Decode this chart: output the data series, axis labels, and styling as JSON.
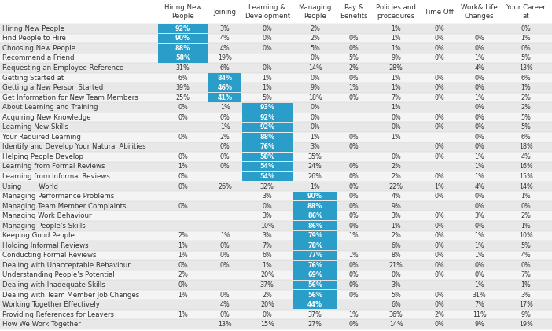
{
  "columns": [
    "Hiring New\nPeople",
    "Joining",
    "Learning &\nDevelopment",
    "Managing\nPeople",
    "Pay &\nBenefits",
    "Policies and\nprocedures",
    "Time Off",
    "Work& Life\nChanges",
    "Your Career\nat"
  ],
  "rows": [
    "Hiring New People",
    "Find People to Hire",
    "Choosing New People",
    "Recommend a Friend",
    "Requesting an Employee Reference",
    "Getting Started at",
    "Getting a New Person Started",
    "Get Information for New Team Members",
    "About Learning and Training",
    "Acquiring New Knowledge",
    "Learning New Skills",
    "Your Required Learning",
    "Identify and Develop Your Natural Abilities",
    "Helping People Develop",
    "Learning from Formal Reviews",
    "Learning from Informal Reviews",
    "Using        World",
    "Managing Performance Problems",
    "Managing Team Member Complaints",
    "Managing Work Behaviour",
    "Managing People's Skills",
    "Keeping Good People",
    "Holding Informal Reviews",
    "Conducting Formal Reviews",
    "Dealing with Unacceptable Behaviour",
    "Understanding People's Potential",
    "Dealing with Inadequate Skills",
    "Dealing with Team Member Job Changes",
    "Working Together Effectively",
    "Providing References for Leavers",
    "How We Work Together"
  ],
  "data": [
    [
      "92%",
      "3%",
      "0%",
      "2%",
      "",
      "1%",
      "0%",
      "",
      "0%"
    ],
    [
      "90%",
      "4%",
      "0%",
      "2%",
      "0%",
      "1%",
      "0%",
      "0%",
      "1%"
    ],
    [
      "88%",
      "4%",
      "0%",
      "5%",
      "0%",
      "1%",
      "0%",
      "0%",
      "0%"
    ],
    [
      "58%",
      "19%",
      "",
      "0%",
      "5%",
      "9%",
      "0%",
      "1%",
      "5%"
    ],
    [
      "31%",
      "6%",
      "0%",
      "14%",
      "2%",
      "28%",
      "",
      "4%",
      "13%"
    ],
    [
      "6%",
      "84%",
      "1%",
      "0%",
      "0%",
      "1%",
      "0%",
      "0%",
      "6%"
    ],
    [
      "39%",
      "46%",
      "1%",
      "9%",
      "1%",
      "1%",
      "0%",
      "0%",
      "1%"
    ],
    [
      "25%",
      "41%",
      "5%",
      "18%",
      "0%",
      "7%",
      "0%",
      "1%",
      "2%"
    ],
    [
      "0%",
      "1%",
      "93%",
      "0%",
      "",
      "1%",
      "",
      "0%",
      "2%"
    ],
    [
      "0%",
      "0%",
      "92%",
      "0%",
      "",
      "0%",
      "0%",
      "0%",
      "5%"
    ],
    [
      "",
      "1%",
      "92%",
      "0%",
      "",
      "0%",
      "0%",
      "0%",
      "5%"
    ],
    [
      "0%",
      "2%",
      "88%",
      "1%",
      "0%",
      "1%",
      "",
      "0%",
      "6%"
    ],
    [
      "",
      "0%",
      "76%",
      "3%",
      "0%",
      "",
      "0%",
      "0%",
      "18%"
    ],
    [
      "0%",
      "0%",
      "58%",
      "35%",
      "",
      "0%",
      "0%",
      "1%",
      "4%"
    ],
    [
      "1%",
      "0%",
      "54%",
      "24%",
      "0%",
      "2%",
      "",
      "1%",
      "16%"
    ],
    [
      "0%",
      "",
      "54%",
      "26%",
      "0%",
      "2%",
      "0%",
      "1%",
      "15%"
    ],
    [
      "0%",
      "26%",
      "32%",
      "1%",
      "0%",
      "22%",
      "1%",
      "4%",
      "14%"
    ],
    [
      "",
      "",
      "3%",
      "90%",
      "0%",
      "4%",
      "0%",
      "0%",
      "1%"
    ],
    [
      "0%",
      "",
      "0%",
      "88%",
      "0%",
      "9%",
      "",
      "0%",
      "0%"
    ],
    [
      "",
      "",
      "3%",
      "86%",
      "0%",
      "3%",
      "0%",
      "3%",
      "2%"
    ],
    [
      "",
      "",
      "10%",
      "86%",
      "0%",
      "1%",
      "0%",
      "0%",
      "1%"
    ],
    [
      "2%",
      "1%",
      "3%",
      "79%",
      "1%",
      "2%",
      "0%",
      "1%",
      "10%"
    ],
    [
      "1%",
      "0%",
      "7%",
      "78%",
      "",
      "6%",
      "0%",
      "1%",
      "5%"
    ],
    [
      "1%",
      "0%",
      "6%",
      "77%",
      "1%",
      "8%",
      "0%",
      "1%",
      "4%"
    ],
    [
      "0%",
      "0%",
      "1%",
      "76%",
      "0%",
      "21%",
      "0%",
      "0%",
      "0%"
    ],
    [
      "2%",
      "",
      "20%",
      "69%",
      "0%",
      "0%",
      "0%",
      "0%",
      "7%"
    ],
    [
      "0%",
      "",
      "37%",
      "56%",
      "0%",
      "3%",
      "",
      "1%",
      "1%"
    ],
    [
      "1%",
      "0%",
      "2%",
      "56%",
      "0%",
      "5%",
      "0%",
      "31%",
      "3%"
    ],
    [
      "",
      "4%",
      "20%",
      "44%",
      "",
      "6%",
      "0%",
      "7%",
      "17%"
    ],
    [
      "1%",
      "0%",
      "0%",
      "37%",
      "1%",
      "36%",
      "2%",
      "11%",
      "9%"
    ],
    [
      "",
      "13%",
      "15%",
      "27%",
      "0%",
      "14%",
      "0%",
      "9%",
      "19%"
    ]
  ],
  "highlight_threshold": 40,
  "color_blue": "#2B9DC9",
  "color_grey_even": "#E8E8E8",
  "color_grey_odd": "#F4F4F4",
  "color_text_dark": "#333333",
  "color_text_white": "#FFFFFF",
  "color_header_bg": "#FFFFFF",
  "font_size_data": 5.8,
  "font_size_header": 6.2,
  "font_size_row": 6.2
}
